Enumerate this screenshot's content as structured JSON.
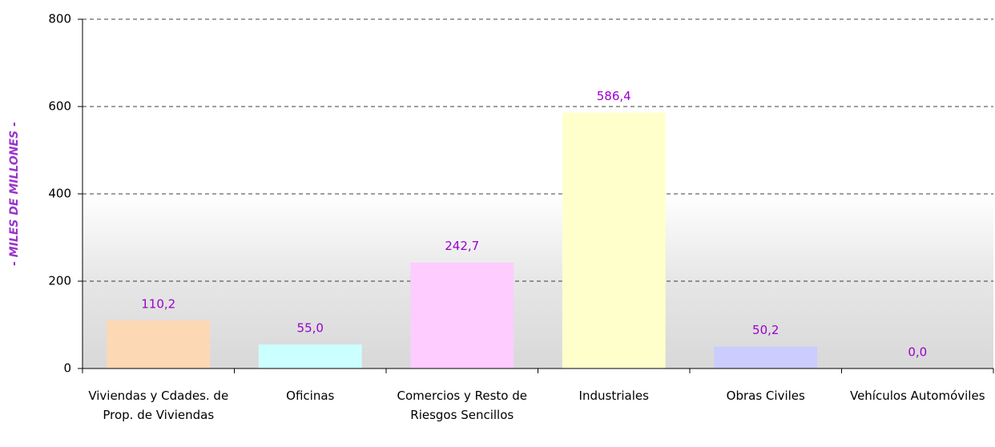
{
  "chart_data": {
    "type": "bar",
    "y_label": "- MILES DE MILLONES -",
    "categories": [
      "Viviendas y Cdades. de Prop. de Viviendas",
      "Oficinas",
      "Comercios y Resto de Riesgos Sencillos",
      "Industriales",
      "Obras Civiles",
      "Vehículos Automóviles"
    ],
    "values": [
      110.2,
      55.0,
      242.7,
      586.4,
      50.2,
      0.0
    ],
    "value_labels": [
      "110,2",
      "55,0",
      "242,7",
      "586,4",
      "50,2",
      "0,0"
    ],
    "colors": [
      "#fdd8b5",
      "#ccffff",
      "#ffccff",
      "#ffffcc",
      "#ccccff",
      "#ffffff"
    ],
    "ylim": [
      0,
      800
    ],
    "yticks": [
      0,
      200,
      400,
      600,
      800
    ],
    "grid": true
  }
}
